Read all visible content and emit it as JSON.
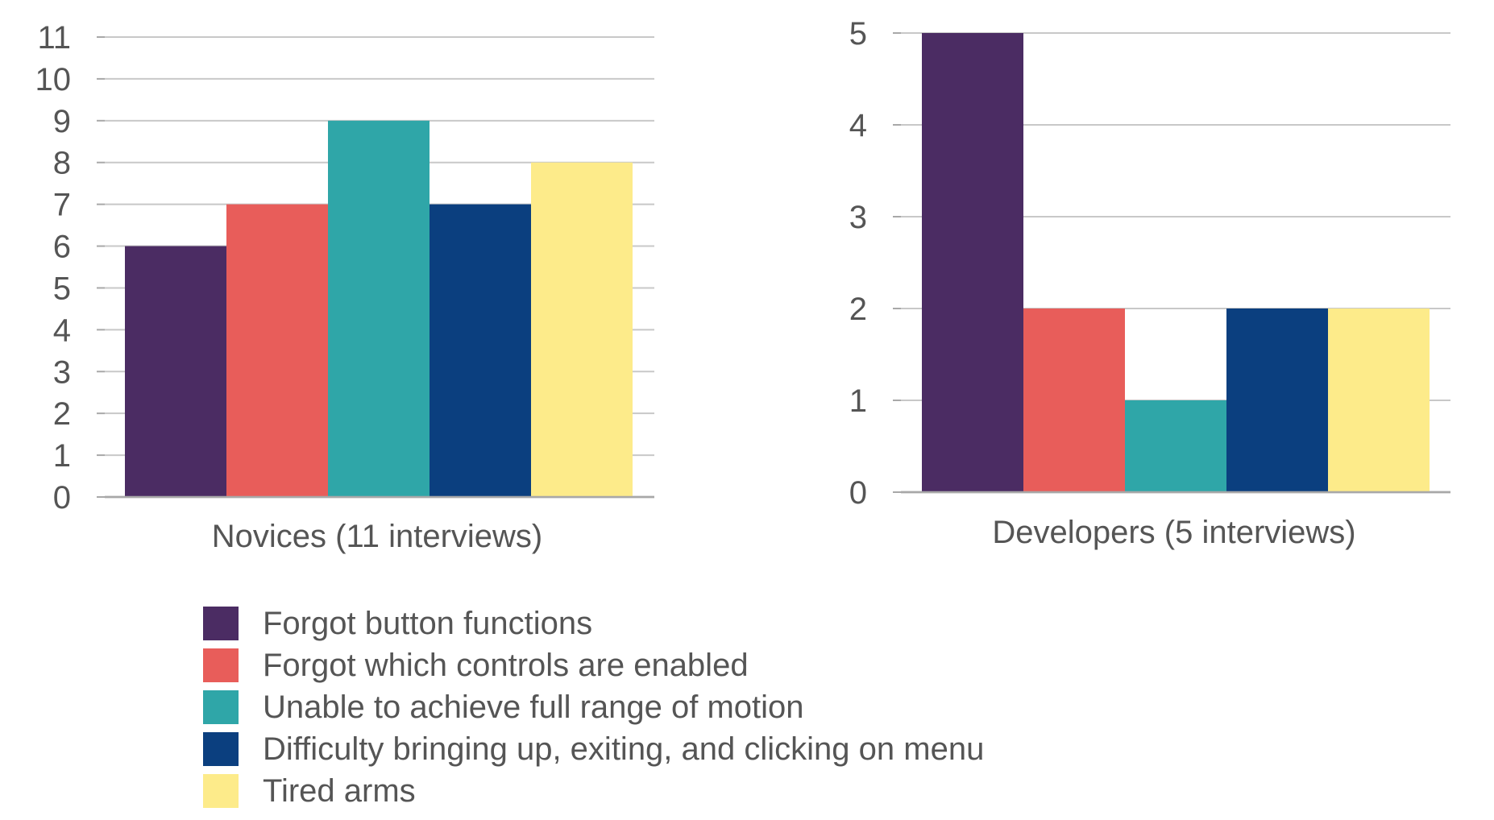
{
  "colors": {
    "grid": "#c8c8c8",
    "axis": "#a8a8a8",
    "text": "#555555"
  },
  "legend": [
    {
      "label": "Forgot button functions",
      "color": "#4b2c63"
    },
    {
      "label": "Forgot which controls are enabled",
      "color": "#e85d5a"
    },
    {
      "label": "Unable to achieve full range of motion",
      "color": "#2fa6a8"
    },
    {
      "label": "Difficulty bringing up, exiting, and clicking on menu",
      "color": "#0b3f7f"
    },
    {
      "label": "Tired arms",
      "color": "#fdeb8a"
    }
  ],
  "chart_data": [
    {
      "type": "bar",
      "categories": [
        "Novices (11 interviews)"
      ],
      "xlabel": "Novices (11 interviews)",
      "ylim": [
        0,
        11
      ],
      "yticks": [
        "0",
        "1",
        "2",
        "3",
        "4",
        "5",
        "6",
        "7",
        "8",
        "9",
        "10",
        "11"
      ],
      "grid": true,
      "legend_position": "bottom",
      "series": [
        {
          "name": "Forgot button functions",
          "values": [
            6
          ]
        },
        {
          "name": "Forgot which controls are enabled",
          "values": [
            7
          ]
        },
        {
          "name": "Unable to achieve full range of motion",
          "values": [
            9
          ]
        },
        {
          "name": "Difficulty bringing up, exiting, and clicking on menu",
          "values": [
            7
          ]
        },
        {
          "name": "Tired arms",
          "values": [
            8
          ]
        }
      ]
    },
    {
      "type": "bar",
      "categories": [
        "Developers (5 interviews)"
      ],
      "xlabel": "Developers (5 interviews)",
      "ylim": [
        0,
        5
      ],
      "yticks": [
        "0",
        "1",
        "2",
        "3",
        "4",
        "5"
      ],
      "grid": true,
      "legend_position": "bottom",
      "series": [
        {
          "name": "Forgot button functions",
          "values": [
            5
          ]
        },
        {
          "name": "Forgot which controls are enabled",
          "values": [
            2
          ]
        },
        {
          "name": "Unable to achieve full range of motion",
          "values": [
            1
          ]
        },
        {
          "name": "Difficulty bringing up, exiting, and clicking on menu",
          "values": [
            2
          ]
        },
        {
          "name": "Tired arms",
          "values": [
            2
          ]
        }
      ]
    }
  ]
}
